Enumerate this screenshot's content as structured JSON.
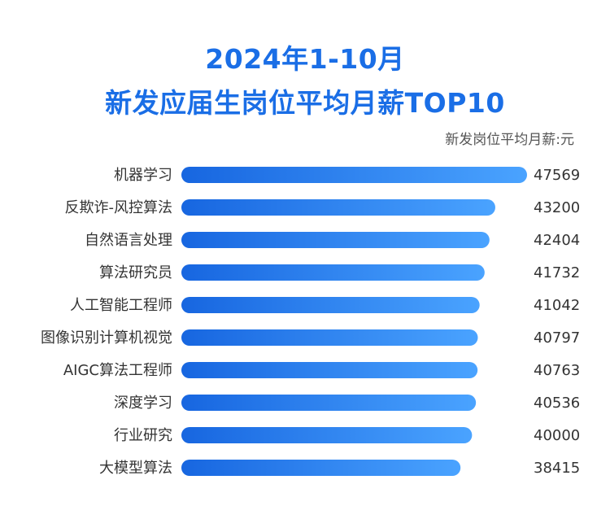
{
  "chart_data": {
    "type": "bar",
    "orientation": "horizontal",
    "title_line1": "2024年1-10月",
    "title_line2": "新发应届生岗位平均月薪TOP10",
    "unit_label": "新发岗位平均月薪:元",
    "categories": [
      "机器学习",
      "反欺诈-风控算法",
      "自然语言处理",
      "算法研究员",
      "人工智能工程师",
      "图像识别计算机视觉",
      "AIGC算法工程师",
      "深度学习",
      "行业研究",
      "大模型算法"
    ],
    "values": [
      47569,
      43200,
      42404,
      41732,
      41042,
      40797,
      40763,
      40536,
      40000,
      38415
    ],
    "xlim": [
      0,
      47569
    ],
    "grid": false,
    "legend": "none"
  },
  "colors": {
    "title": "#1a6ee6",
    "bar_start": "#1766e0",
    "bar_end": "#4aa3ff"
  }
}
